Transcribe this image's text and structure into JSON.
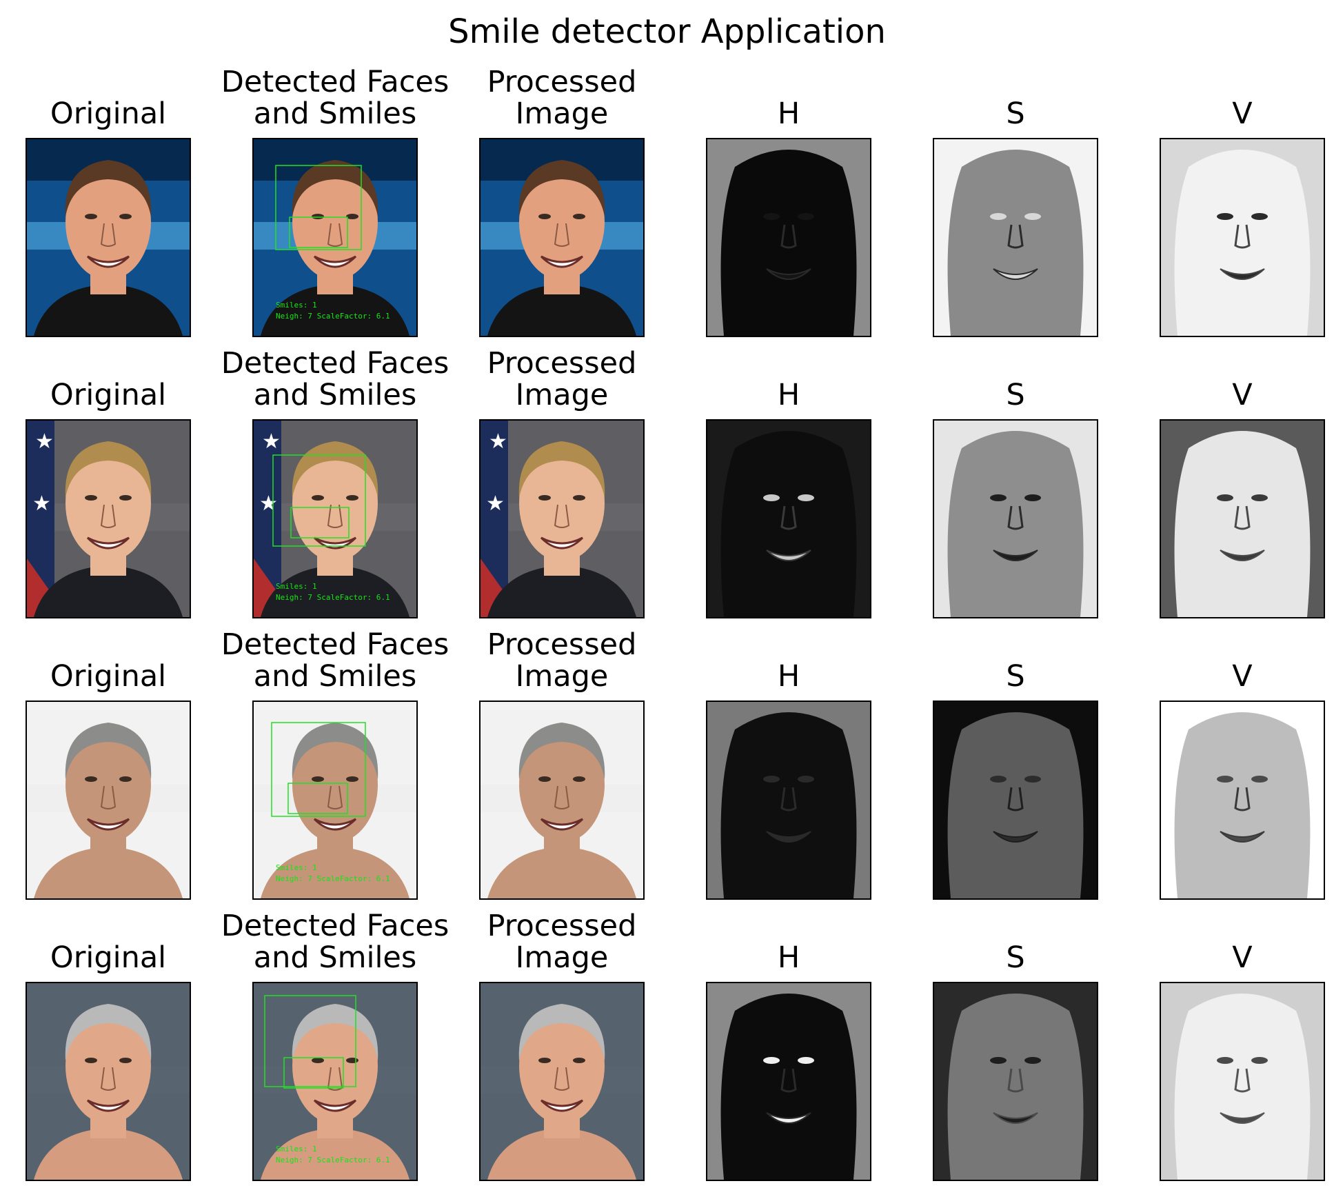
{
  "figure": {
    "title": "Smile detector Application"
  },
  "panel_titles": {
    "original": "Original",
    "detected_line1": "Detected Faces",
    "detected_line2": "and Smiles",
    "processed_line1": "Processed",
    "processed_line2": "Image",
    "h": "H",
    "s": "S",
    "v": "V"
  },
  "detection_caption": {
    "smiles": "Smiles: 1",
    "params": "Neigh: 7 ScaleFactor: 6.1"
  },
  "colors": {
    "detection_box": "#22e022",
    "caption_text": "#17e317"
  },
  "rows": [
    {
      "subject": "man in dark shirt, blue background",
      "icon": "portrait-icon"
    },
    {
      "subject": "woman in front of flag",
      "icon": "portrait-icon"
    },
    {
      "subject": "older man with mustache, white background",
      "icon": "portrait-icon"
    },
    {
      "subject": "older woman, slate background",
      "icon": "portrait-icon"
    }
  ]
}
